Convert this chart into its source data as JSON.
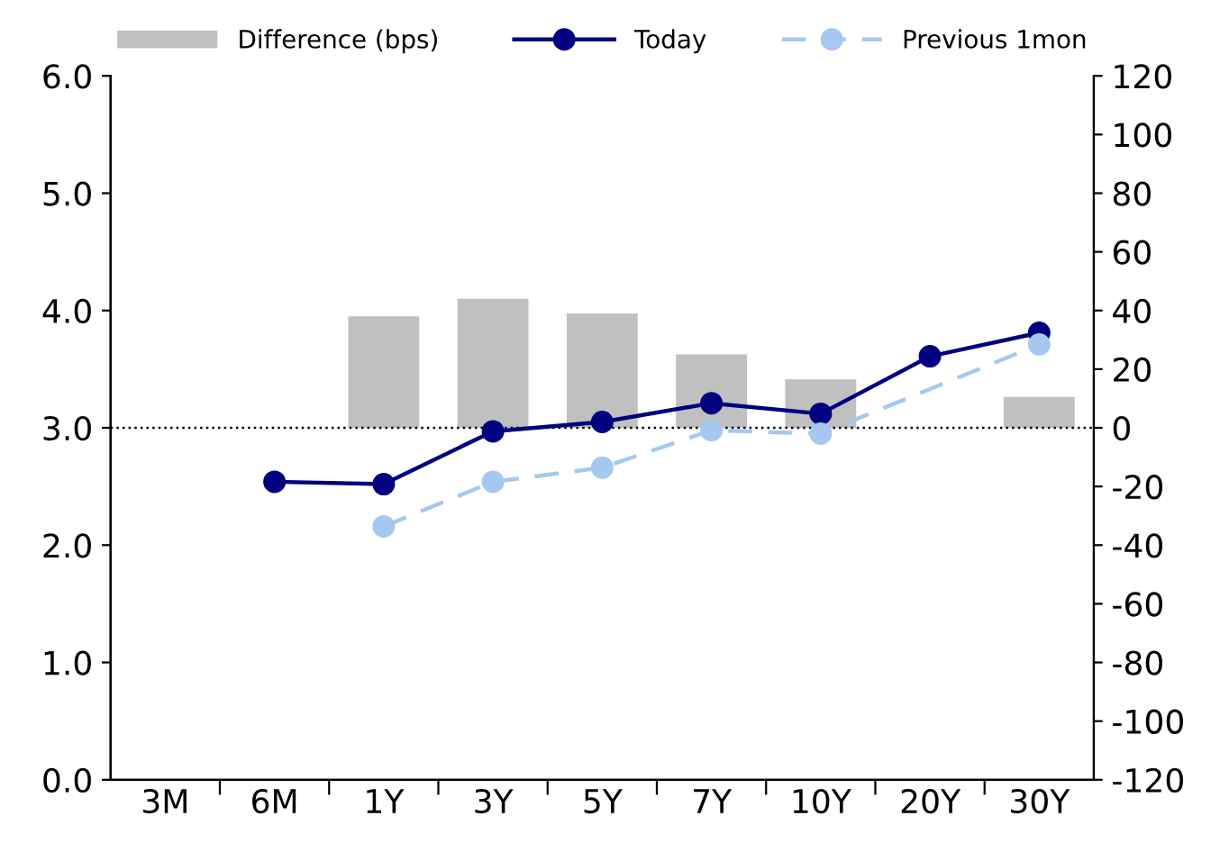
{
  "chart_data": {
    "type": "line",
    "categories": [
      "3M",
      "6M",
      "1Y",
      "3Y",
      "5Y",
      "7Y",
      "10Y",
      "20Y",
      "30Y"
    ],
    "series": [
      {
        "name": "Difference (bps)",
        "type": "bar",
        "axis": "y2",
        "color": "#c0c0c0",
        "values": [
          null,
          null,
          38,
          44,
          39,
          25,
          16.5,
          null,
          10.5
        ]
      },
      {
        "name": "Today",
        "color": "#000080",
        "marker": "circle",
        "line_style": "solid",
        "values": [
          null,
          2.54,
          2.52,
          2.97,
          3.05,
          3.21,
          3.12,
          3.61,
          3.81
        ]
      },
      {
        "name": "Previous 1mon",
        "color": "#a6c8f0",
        "marker": "circle",
        "line_style": "dashed",
        "values": [
          null,
          null,
          2.16,
          2.54,
          2.66,
          2.98,
          2.95,
          null,
          3.71
        ]
      }
    ],
    "ylim": [
      0,
      6
    ],
    "yticks": [
      {
        "value": 0,
        "label": "0.0"
      },
      {
        "value": 1,
        "label": "1.0"
      },
      {
        "value": 2,
        "label": "2.0"
      },
      {
        "value": 3,
        "label": "3.0"
      },
      {
        "value": 4,
        "label": "4.0"
      },
      {
        "value": 5,
        "label": "5.0"
      },
      {
        "value": 6,
        "label": "6.0"
      }
    ],
    "y2lim": [
      -120,
      120
    ],
    "y2ticks": [
      -120,
      -100,
      -80,
      -60,
      -40,
      -20,
      0,
      20,
      40,
      60,
      80,
      100,
      120
    ],
    "ref_lines": [
      {
        "axis": "y",
        "value": 3,
        "color": "#000000",
        "line_style": "dotted"
      }
    ],
    "grid": false,
    "legend": "top"
  }
}
